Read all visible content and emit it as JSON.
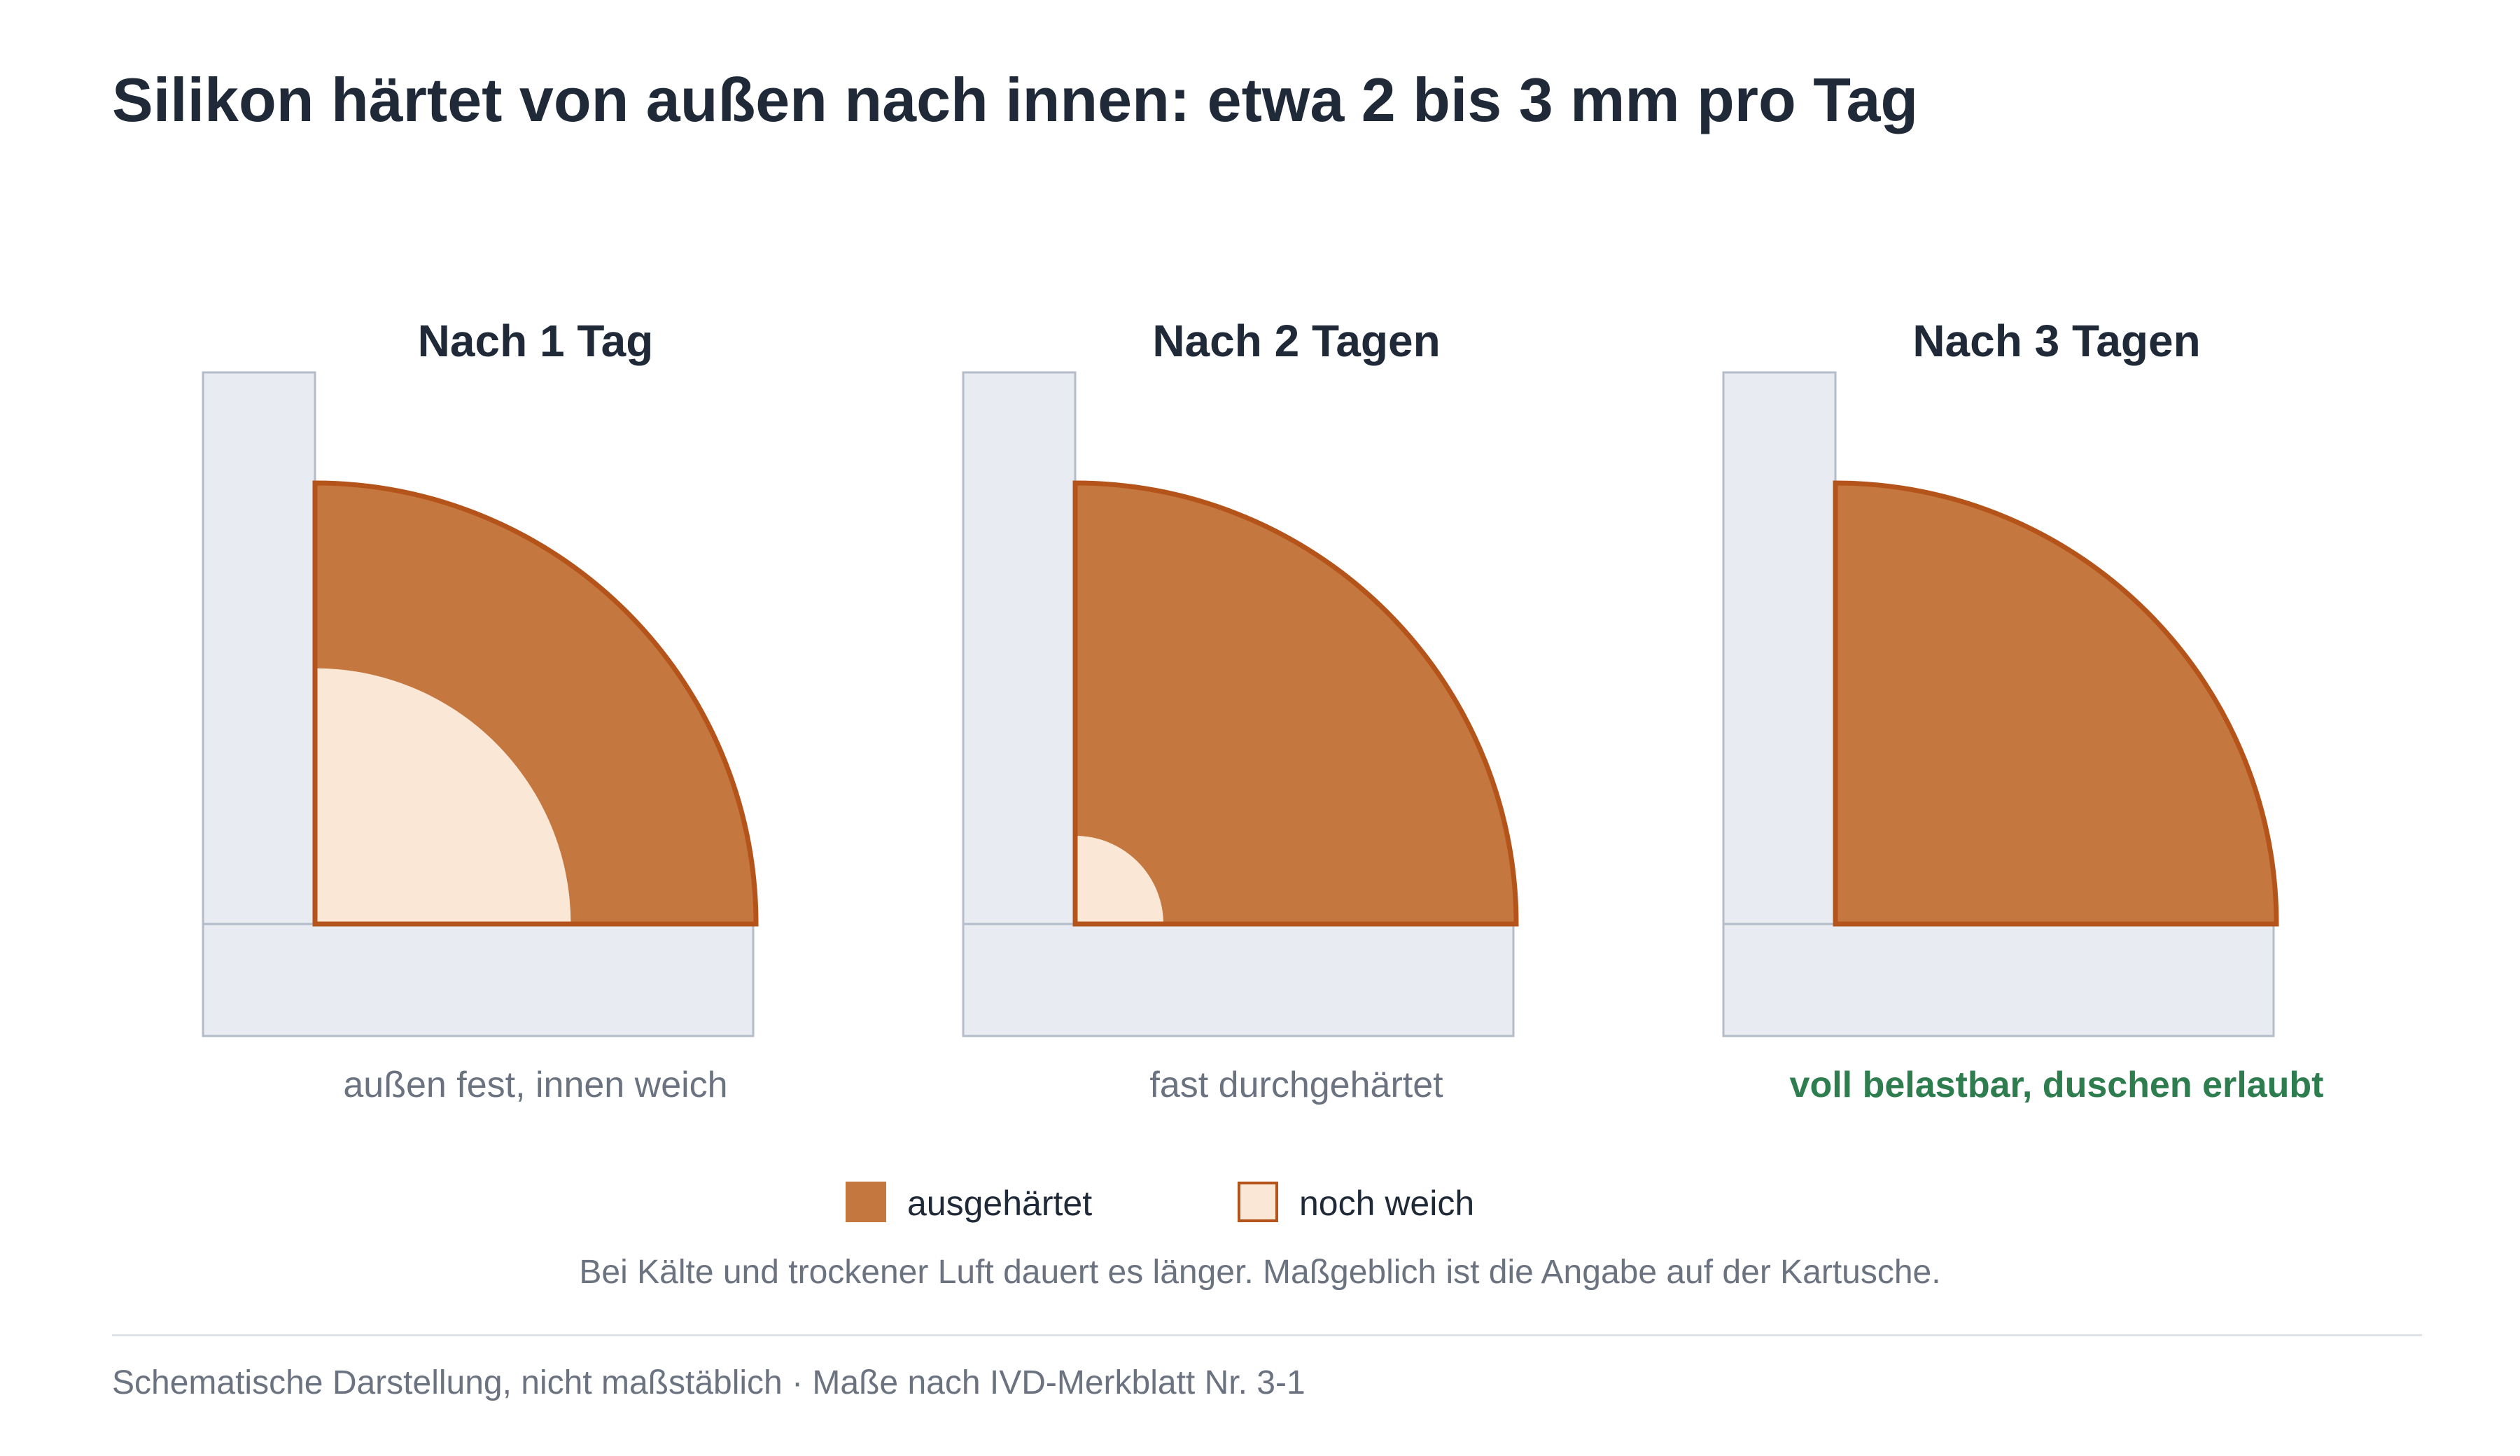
{
  "title": "Silikon härtet von außen nach innen: etwa 2 bis 3 mm pro Tag",
  "panels": [
    {
      "title": "Nach 1 Tag",
      "caption": "außen fest, innen weich",
      "soft_fraction": 0.58
    },
    {
      "title": "Nach 2 Tagen",
      "caption": "fast durchgehärtet",
      "soft_fraction": 0.2
    },
    {
      "title": "Nach 3 Tagen",
      "caption": "voll belastbar, duschen erlaubt",
      "soft_fraction": 0
    }
  ],
  "legend": [
    {
      "label": "ausgehärtet",
      "color": "#c4783f"
    },
    {
      "label": "noch weich",
      "color": "#fae7d6"
    }
  ],
  "note": "Bei Kälte und trockener Luft dauert es länger. Maßgeblich ist die Angabe auf der Kartusche.",
  "footer": "Schematische Darstellung, nicht maßstäblich · Maße nach IVD-Merkblatt Nr. 3-1",
  "colors": {
    "hardened": "#c4783f",
    "soft": "#fae7d6",
    "outline": "#b5541a",
    "substrate": "#e8ecf2",
    "substrate_border": "#b4bcca",
    "ok_text": "#2e7d4f"
  }
}
